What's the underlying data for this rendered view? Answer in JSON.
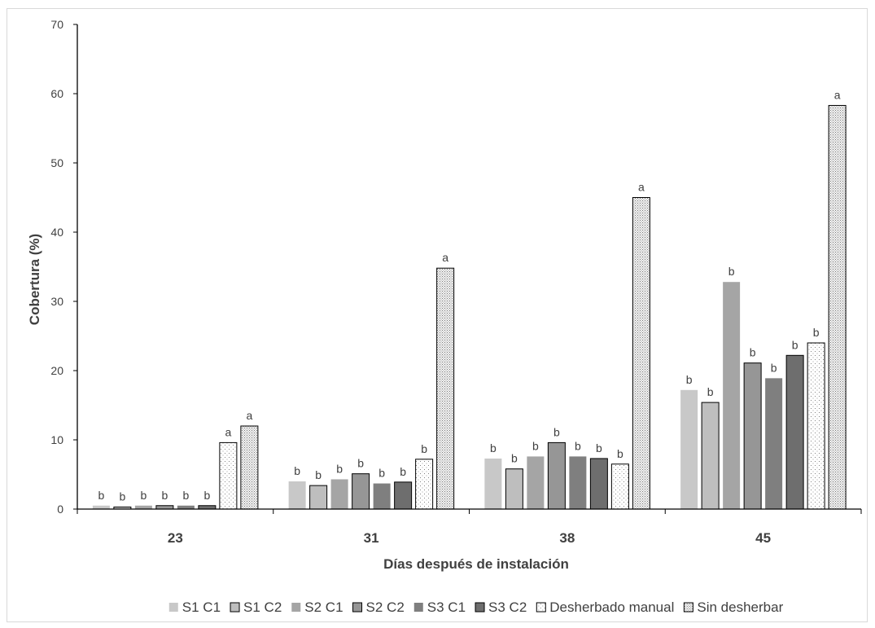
{
  "chart_data": {
    "type": "bar",
    "title": "",
    "xlabel": "Días después de instalación",
    "ylabel": "Cobertura (%)",
    "ylim": [
      0,
      70
    ],
    "yticks": [
      0,
      10,
      20,
      30,
      40,
      50,
      60,
      70
    ],
    "categories": [
      "23",
      "31",
      "38",
      "45"
    ],
    "grid": false,
    "legend_position": "bottom",
    "series": [
      {
        "name": "S1 C1",
        "values": [
          0.5,
          4.0,
          7.3,
          17.2
        ],
        "labels": [
          "b",
          "b",
          "b",
          "b"
        ],
        "color": "#c8c8c8",
        "pattern": "solid"
      },
      {
        "name": "S1 C2",
        "values": [
          0.3,
          3.4,
          5.8,
          15.4
        ],
        "labels": [
          "b",
          "b",
          "b",
          "b"
        ],
        "color": "#bebebe",
        "pattern": "solid-outlined"
      },
      {
        "name": "S2 C1",
        "values": [
          0.5,
          4.3,
          7.6,
          32.8
        ],
        "labels": [
          "b",
          "b",
          "b",
          "b"
        ],
        "color": "#a5a5a5",
        "pattern": "solid"
      },
      {
        "name": "S2 C2",
        "values": [
          0.5,
          5.1,
          9.6,
          21.1
        ],
        "labels": [
          "b",
          "b",
          "b",
          "b"
        ],
        "color": "#969696",
        "pattern": "solid-outlined"
      },
      {
        "name": "S3 C1",
        "values": [
          0.5,
          3.7,
          7.6,
          18.9
        ],
        "labels": [
          "b",
          "b",
          "b",
          "b"
        ],
        "color": "#7f7f7f",
        "pattern": "solid"
      },
      {
        "name": "S3 C2",
        "values": [
          0.5,
          3.9,
          7.3,
          22.2
        ],
        "labels": [
          "b",
          "b",
          "b",
          "b"
        ],
        "color": "#6e6e6e",
        "pattern": "solid-outlined"
      },
      {
        "name": "Desherbado manual",
        "values": [
          9.6,
          7.2,
          6.5,
          24.0
        ],
        "labels": [
          "a",
          "b",
          "b",
          "b"
        ],
        "color": "#ffffff",
        "pattern": "sparse-dots"
      },
      {
        "name": "Sin desherbar",
        "values": [
          12.0,
          34.8,
          45.0,
          58.3
        ],
        "labels": [
          "a",
          "a",
          "a",
          "a"
        ],
        "color": "#e6e6e6",
        "pattern": "dense-dots"
      }
    ]
  }
}
